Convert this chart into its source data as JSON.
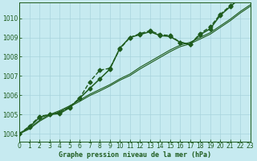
{
  "title": "Graphe pression niveau de la mer (hPa)",
  "bg_color": "#c6eaf0",
  "grid_color": "#a8d4dc",
  "line_color": "#1e5c1e",
  "xlim": [
    0,
    23
  ],
  "ylim": [
    1003.6,
    1010.8
  ],
  "xticks": [
    0,
    1,
    2,
    3,
    4,
    5,
    6,
    7,
    8,
    9,
    10,
    11,
    12,
    13,
    14,
    15,
    16,
    17,
    18,
    19,
    20,
    21,
    22,
    23
  ],
  "yticks": [
    1004,
    1005,
    1006,
    1007,
    1008,
    1009,
    1010
  ],
  "series": [
    {
      "x": [
        0,
        1,
        2,
        3,
        4,
        5,
        6,
        7,
        8,
        9,
        10,
        11,
        12,
        13,
        14,
        15,
        16,
        17,
        18,
        19,
        20,
        21,
        22,
        23
      ],
      "y": [
        1004.0,
        1004.35,
        1004.85,
        1005.0,
        1005.05,
        1005.35,
        1005.85,
        1006.35,
        1006.85,
        1007.35,
        1008.45,
        1009.0,
        1009.15,
        1009.3,
        1009.1,
        1009.05,
        1008.75,
        1008.65,
        1009.15,
        1009.45,
        1010.15,
        1010.6,
        1011.05,
        1011.25
      ],
      "style": "solid",
      "marker": "D",
      "markersize": 2.5,
      "linewidth": 1.1
    },
    {
      "x": [
        0,
        1,
        2,
        3,
        4,
        5,
        6,
        7,
        8,
        9,
        10,
        11,
        12,
        13,
        14,
        15,
        16,
        17,
        18,
        19,
        20,
        21,
        22,
        23
      ],
      "y": [
        1004.0,
        1004.3,
        1004.7,
        1005.0,
        1005.2,
        1005.45,
        1005.75,
        1006.05,
        1006.3,
        1006.55,
        1006.85,
        1007.1,
        1007.45,
        1007.75,
        1008.05,
        1008.35,
        1008.6,
        1008.75,
        1009.0,
        1009.25,
        1009.6,
        1009.95,
        1010.35,
        1010.7
      ],
      "style": "solid",
      "marker": null,
      "linewidth": 0.8
    },
    {
      "x": [
        0,
        1,
        2,
        3,
        4,
        5,
        6,
        7,
        8,
        9,
        10,
        11,
        12,
        13,
        14,
        15,
        16,
        17,
        18,
        19,
        20,
        21,
        22,
        23
      ],
      "y": [
        1004.0,
        1004.25,
        1004.65,
        1004.95,
        1005.15,
        1005.4,
        1005.68,
        1005.98,
        1006.22,
        1006.48,
        1006.78,
        1007.02,
        1007.36,
        1007.66,
        1007.96,
        1008.26,
        1008.52,
        1008.67,
        1008.92,
        1009.17,
        1009.52,
        1009.87,
        1010.27,
        1010.62
      ],
      "style": "solid",
      "marker": null,
      "linewidth": 0.8
    },
    {
      "x": [
        0,
        1,
        2,
        3,
        4,
        5,
        6,
        7,
        8,
        9,
        10,
        11,
        12,
        13,
        14,
        15,
        16,
        17,
        18,
        19,
        20,
        21,
        22,
        23
      ],
      "y": [
        1004.0,
        1004.4,
        1004.9,
        1005.0,
        1005.1,
        1005.4,
        1005.85,
        1006.7,
        1007.3,
        1007.4,
        1008.4,
        1009.0,
        1009.2,
        1009.35,
        1009.15,
        1009.1,
        1008.75,
        1008.65,
        1009.2,
        1009.55,
        1010.2,
        1010.65,
        1011.1,
        1011.3
      ],
      "style": "dashed",
      "marker": "D",
      "markersize": 2.5,
      "linewidth": 1.0
    }
  ]
}
